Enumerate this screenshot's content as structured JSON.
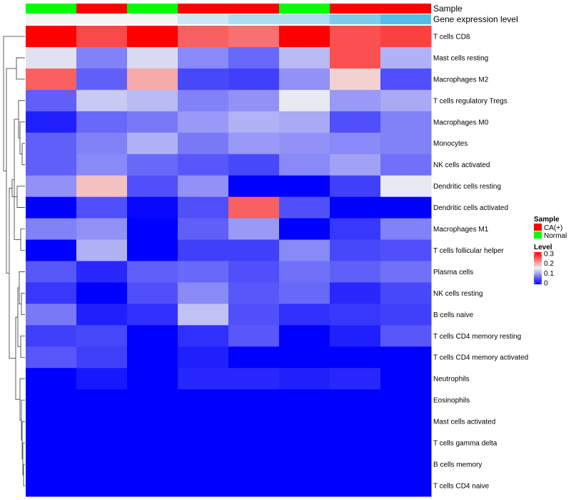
{
  "chart_data": {
    "type": "heatmap",
    "title": "",
    "annotations": [
      {
        "name": "Sample",
        "values": [
          "Normal",
          "CA(+)",
          "Normal",
          "CA(+)",
          "CA(+)",
          "Normal",
          "CA(+)",
          "CA(+)"
        ]
      },
      {
        "name": "Gene expression level",
        "values": [
          "#f4f4f4",
          "#f4f4f4",
          "#f4f4f4",
          "#cfe6f3",
          "#b0dcef",
          "#b0dcef",
          "#7fcbeb",
          "#55bdea"
        ]
      }
    ],
    "columns": 8,
    "rows": [
      {
        "label": "T cells CD8",
        "values": [
          0.3,
          0.255,
          0.3,
          0.24,
          0.23,
          0.3,
          0.25,
          0.26
        ]
      },
      {
        "label": "Mast cells resting",
        "values": [
          0.14,
          0.08,
          0.135,
          0.085,
          0.065,
          0.115,
          0.25,
          0.11
        ]
      },
      {
        "label": "Macrophages M2",
        "values": [
          0.24,
          0.06,
          0.195,
          0.045,
          0.04,
          0.09,
          0.17,
          0.05
        ]
      },
      {
        "label": "T cells regulatory  Tregs",
        "values": [
          0.06,
          0.125,
          0.115,
          0.08,
          0.09,
          0.145,
          0.095,
          0.105
        ]
      },
      {
        "label": "Macrophages M0",
        "values": [
          0.02,
          0.065,
          0.075,
          0.095,
          0.11,
          0.105,
          0.05,
          0.08
        ]
      },
      {
        "label": "Monocytes",
        "values": [
          0.06,
          0.08,
          0.11,
          0.075,
          0.095,
          0.09,
          0.085,
          0.08
        ]
      },
      {
        "label": "NK cells activated",
        "values": [
          0.06,
          0.085,
          0.065,
          0.055,
          0.045,
          0.085,
          0.1,
          0.07
        ]
      },
      {
        "label": "Dendritic cells resting",
        "values": [
          0.09,
          0.18,
          0.05,
          0.09,
          0.0,
          0.0,
          0.04,
          0.145
        ]
      },
      {
        "label": "Dendritic cells activated",
        "values": [
          0.0,
          0.05,
          0.005,
          0.05,
          0.24,
          0.05,
          0.0,
          0.0
        ]
      },
      {
        "label": "Macrophages M1",
        "values": [
          0.08,
          0.09,
          0.0,
          0.06,
          0.095,
          0.0,
          0.035,
          0.08
        ]
      },
      {
        "label": "T cells follicular helper",
        "values": [
          0.0,
          0.11,
          0.0,
          0.04,
          0.04,
          0.085,
          0.045,
          0.05
        ]
      },
      {
        "label": "Plasma cells",
        "values": [
          0.055,
          0.025,
          0.06,
          0.065,
          0.05,
          0.07,
          0.06,
          0.07
        ]
      },
      {
        "label": "NK cells resting",
        "values": [
          0.035,
          0.0,
          0.05,
          0.085,
          0.055,
          0.065,
          0.025,
          0.045
        ]
      },
      {
        "label": "B cells naive",
        "values": [
          0.075,
          0.02,
          0.03,
          0.12,
          0.05,
          0.03,
          0.035,
          0.04
        ]
      },
      {
        "label": "T cells CD4 memory resting",
        "values": [
          0.04,
          0.045,
          0.0,
          0.03,
          0.055,
          0.0,
          0.02,
          0.055
        ]
      },
      {
        "label": "T cells CD4 memory activated",
        "values": [
          0.055,
          0.04,
          0.0,
          0.02,
          0.0,
          0.0,
          0.0,
          0.0
        ]
      },
      {
        "label": "Neutrophils",
        "values": [
          0.0,
          0.015,
          0.0,
          0.025,
          0.025,
          0.02,
          0.025,
          0.0
        ]
      },
      {
        "label": "Eosinophils",
        "values": [
          0.0,
          0.0,
          0.0,
          0.0,
          0.0,
          0.0,
          0.0,
          0.0
        ]
      },
      {
        "label": "Mast cells activated",
        "values": [
          0.0,
          0.0,
          0.0,
          0.0,
          0.0,
          0.0,
          0.0,
          0.0
        ]
      },
      {
        "label": "T cells gamma delta",
        "values": [
          0.0,
          0.0,
          0.0,
          0.0,
          0.0,
          0.0,
          0.0,
          0.0
        ]
      },
      {
        "label": "B cells memory",
        "values": [
          0.0,
          0.0,
          0.0,
          0.0,
          0.0,
          0.0,
          0.0,
          0.0
        ]
      },
      {
        "label": "T cells CD4 naive",
        "values": [
          0.0,
          0.0,
          0.0,
          0.0,
          0.0,
          0.0,
          0.0,
          0.0
        ]
      }
    ],
    "color_scale": {
      "min": 0,
      "max": 0.3,
      "low": "#0000ff",
      "mid": "#f1f1f1",
      "mid_value": 0.15,
      "high": "#ff0000"
    },
    "legend": {
      "sample_title": "Sample",
      "sample_items": [
        {
          "label": "CA(+)",
          "color": "#ff0000"
        },
        {
          "label": "Normal",
          "color": "#00ff00"
        }
      ],
      "level_title": "Level",
      "level_ticks": [
        "0.3",
        "0.2",
        "0.1",
        "0"
      ],
      "placement": "right"
    },
    "row_dendrogram": true
  }
}
